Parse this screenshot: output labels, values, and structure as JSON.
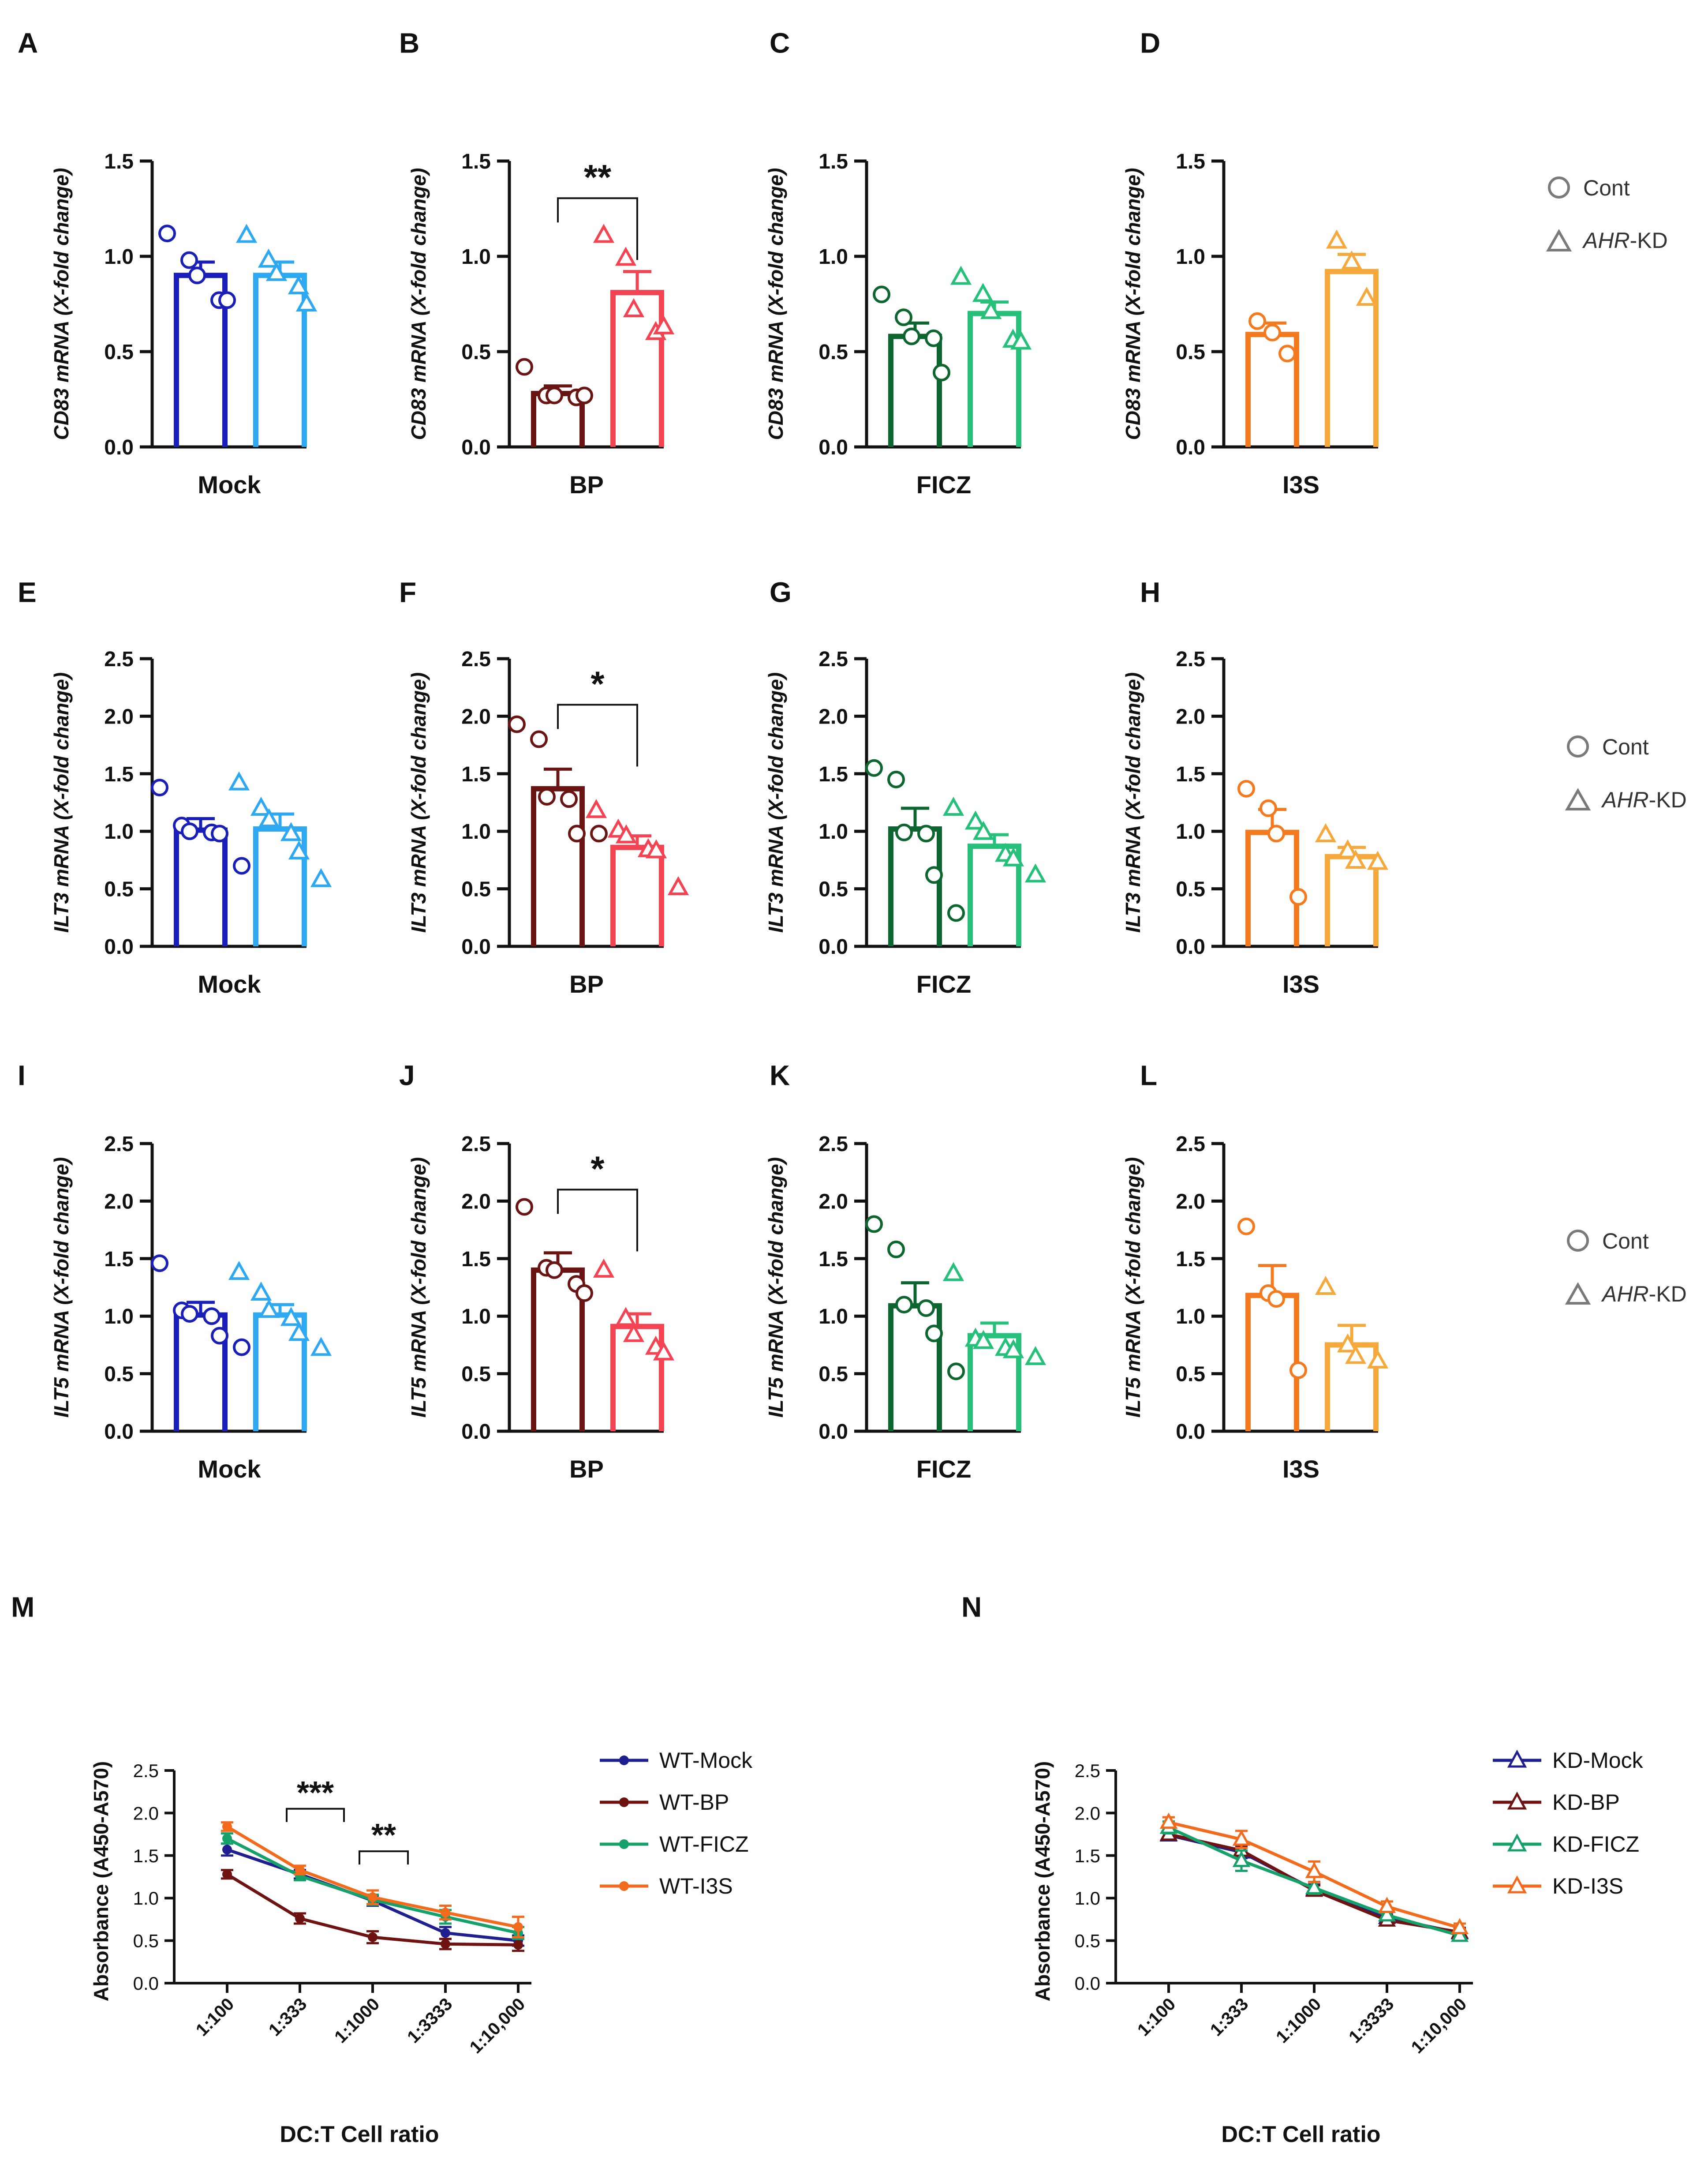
{
  "legend_bar": {
    "cont": "Cont",
    "kd_italic": "AHR",
    "kd_suffix": "-KD"
  },
  "chart_data": [
    {
      "id": "A",
      "type": "bar",
      "title": "",
      "xlabel": "Mock",
      "ylabel_italic": "CD83",
      "ylabel_rest": " mRNA (X-fold change)",
      "ylim": [
        0,
        1.5
      ],
      "yticks": [
        "0.0",
        "0.5",
        "1.0",
        "1.5"
      ],
      "colors": [
        "#1a1fb8",
        "#2ea8f0"
      ],
      "series": [
        {
          "name": "Cont",
          "mean": 0.9,
          "sem": 0.07,
          "points": [
            1.12,
            0.98,
            0.9,
            0.77,
            0.77
          ]
        },
        {
          "name": "AHR-KD",
          "mean": 0.9,
          "sem": 0.07,
          "points": [
            1.11,
            0.98,
            0.91,
            0.84,
            0.75
          ]
        }
      ],
      "sig": ""
    },
    {
      "id": "B",
      "type": "bar",
      "title": "",
      "xlabel": "BP",
      "ylabel_italic": "CD83",
      "ylabel_rest": " mRNA (X-fold change)",
      "ylim": [
        0,
        1.5
      ],
      "yticks": [
        "0.0",
        "0.5",
        "1.0",
        "1.5"
      ],
      "colors": [
        "#6b1414",
        "#f24452"
      ],
      "series": [
        {
          "name": "Cont",
          "mean": 0.28,
          "sem": 0.04,
          "points": [
            0.42,
            0.27,
            0.27,
            0.26,
            0.27
          ]
        },
        {
          "name": "AHR-KD",
          "mean": 0.81,
          "sem": 0.11,
          "points": [
            1.11,
            0.99,
            0.72,
            0.6,
            0.63
          ]
        }
      ],
      "sig": "**"
    },
    {
      "id": "C",
      "type": "bar",
      "title": "",
      "xlabel": "FICZ",
      "ylabel_italic": "CD83",
      "ylabel_rest": " mRNA (X-fold change)",
      "ylim": [
        0,
        1.5
      ],
      "yticks": [
        "0.0",
        "0.5",
        "1.0",
        "1.5"
      ],
      "colors": [
        "#0d6630",
        "#26c07a"
      ],
      "series": [
        {
          "name": "Cont",
          "mean": 0.58,
          "sem": 0.07,
          "points": [
            0.8,
            0.68,
            0.58,
            0.57,
            0.39
          ]
        },
        {
          "name": "AHR-KD",
          "mean": 0.7,
          "sem": 0.06,
          "points": [
            0.89,
            0.8,
            0.71,
            0.56,
            0.55
          ]
        }
      ],
      "sig": ""
    },
    {
      "id": "D",
      "type": "bar",
      "title": "",
      "xlabel": "I3S",
      "ylabel_italic": "CD83",
      "ylabel_rest": " mRNA (X-fold change)",
      "ylim": [
        0,
        1.5
      ],
      "yticks": [
        "0.0",
        "0.5",
        "1.0",
        "1.5"
      ],
      "colors": [
        "#f47a1f",
        "#f5a93c"
      ],
      "series": [
        {
          "name": "Cont",
          "mean": 0.59,
          "sem": 0.06,
          "points": [
            0.66,
            0.6,
            0.49
          ]
        },
        {
          "name": "AHR-KD",
          "mean": 0.92,
          "sem": 0.09,
          "points": [
            1.08,
            0.97,
            0.78
          ]
        }
      ],
      "sig": ""
    },
    {
      "id": "E",
      "type": "bar",
      "title": "",
      "xlabel": "Mock",
      "ylabel_italic": "ILT3",
      "ylabel_rest": " mRNA (X-fold change)",
      "ylim": [
        0,
        2.5
      ],
      "yticks": [
        "0.0",
        "0.5",
        "1.0",
        "1.5",
        "2.0",
        "2.5"
      ],
      "colors": [
        "#1a1fb8",
        "#2ea8f0"
      ],
      "series": [
        {
          "name": "Cont",
          "mean": 1.01,
          "sem": 0.1,
          "points": [
            1.38,
            1.05,
            1.0,
            0.99,
            0.98,
            0.7
          ]
        },
        {
          "name": "AHR-KD",
          "mean": 1.02,
          "sem": 0.13,
          "points": [
            1.42,
            1.2,
            1.1,
            0.98,
            0.82,
            0.58
          ]
        }
      ],
      "sig": ""
    },
    {
      "id": "F",
      "type": "bar",
      "title": "",
      "xlabel": "BP",
      "ylabel_italic": "ILT3",
      "ylabel_rest": " mRNA (X-fold change)",
      "ylim": [
        0,
        2.5
      ],
      "yticks": [
        "0.0",
        "0.5",
        "1.0",
        "1.5",
        "2.0",
        "2.5"
      ],
      "colors": [
        "#6b1414",
        "#f24452"
      ],
      "series": [
        {
          "name": "Cont",
          "mean": 1.37,
          "sem": 0.17,
          "points": [
            1.93,
            1.8,
            1.3,
            1.28,
            0.98,
            0.98
          ]
        },
        {
          "name": "AHR-KD",
          "mean": 0.86,
          "sem": 0.1,
          "points": [
            1.18,
            1.01,
            0.96,
            0.84,
            0.83,
            0.51
          ]
        }
      ],
      "sig": "*"
    },
    {
      "id": "G",
      "type": "bar",
      "title": "",
      "xlabel": "FICZ",
      "ylabel_italic": "ILT3",
      "ylabel_rest": " mRNA (X-fold change)",
      "ylim": [
        0,
        2.5
      ],
      "yticks": [
        "0.0",
        "0.5",
        "1.0",
        "1.5",
        "2.0",
        "2.5"
      ],
      "colors": [
        "#0d6630",
        "#26c07a"
      ],
      "series": [
        {
          "name": "Cont",
          "mean": 1.02,
          "sem": 0.18,
          "points": [
            1.55,
            1.45,
            0.99,
            0.98,
            0.62,
            0.29
          ]
        },
        {
          "name": "AHR-KD",
          "mean": 0.87,
          "sem": 0.1,
          "points": [
            1.2,
            1.08,
            0.99,
            0.8,
            0.76,
            0.62
          ]
        }
      ],
      "sig": ""
    },
    {
      "id": "H",
      "type": "bar",
      "title": "",
      "xlabel": "I3S",
      "ylabel_italic": "ILT3",
      "ylabel_rest": " mRNA (X-fold change)",
      "ylim": [
        0,
        2.5
      ],
      "yticks": [
        "0.0",
        "0.5",
        "1.0",
        "1.5",
        "2.0",
        "2.5"
      ],
      "colors": [
        "#f47a1f",
        "#f5a93c"
      ],
      "series": [
        {
          "name": "Cont",
          "mean": 0.99,
          "sem": 0.2,
          "points": [
            1.37,
            1.2,
            0.98,
            0.43
          ]
        },
        {
          "name": "AHR-KD",
          "mean": 0.78,
          "sem": 0.08,
          "points": [
            0.97,
            0.83,
            0.74,
            0.73
          ]
        }
      ],
      "sig": ""
    },
    {
      "id": "I",
      "type": "bar",
      "title": "",
      "xlabel": "Mock",
      "ylabel_italic": "ILT5",
      "ylabel_rest": " mRNA (X-fold change)",
      "ylim": [
        0,
        2.5
      ],
      "yticks": [
        "0.0",
        "0.5",
        "1.0",
        "1.5",
        "2.0",
        "2.5"
      ],
      "colors": [
        "#1a1fb8",
        "#2ea8f0"
      ],
      "series": [
        {
          "name": "Cont",
          "mean": 1.01,
          "sem": 0.11,
          "points": [
            1.46,
            1.05,
            1.02,
            1.0,
            0.83,
            0.73
          ]
        },
        {
          "name": "AHR-KD",
          "mean": 1.01,
          "sem": 0.09,
          "points": [
            1.38,
            1.2,
            1.05,
            0.98,
            0.85,
            0.72
          ]
        }
      ],
      "sig": ""
    },
    {
      "id": "J",
      "type": "bar",
      "title": "",
      "xlabel": "BP",
      "ylabel_italic": "ILT5",
      "ylabel_rest": " mRNA (X-fold change)",
      "ylim": [
        0,
        2.5
      ],
      "yticks": [
        "0.0",
        "0.5",
        "1.0",
        "1.5",
        "2.0",
        "2.5"
      ],
      "colors": [
        "#6b1414",
        "#f24452"
      ],
      "series": [
        {
          "name": "Cont",
          "mean": 1.4,
          "sem": 0.15,
          "points": [
            1.95,
            1.42,
            1.4,
            1.28,
            1.2
          ]
        },
        {
          "name": "AHR-KD",
          "mean": 0.91,
          "sem": 0.11,
          "points": [
            1.4,
            0.98,
            0.84,
            0.73,
            0.68
          ]
        }
      ],
      "sig": "*"
    },
    {
      "id": "K",
      "type": "bar",
      "title": "",
      "xlabel": "FICZ",
      "ylabel_italic": "ILT5",
      "ylabel_rest": " mRNA (X-fold change)",
      "ylim": [
        0,
        2.5
      ],
      "yticks": [
        "0.0",
        "0.5",
        "1.0",
        "1.5",
        "2.0",
        "2.5"
      ],
      "colors": [
        "#0d6630",
        "#26c07a"
      ],
      "series": [
        {
          "name": "Cont",
          "mean": 1.09,
          "sem": 0.2,
          "points": [
            1.8,
            1.58,
            1.1,
            1.07,
            0.85,
            0.52
          ]
        },
        {
          "name": "AHR-KD",
          "mean": 0.83,
          "sem": 0.11,
          "points": [
            1.37,
            0.8,
            0.78,
            0.72,
            0.7,
            0.64
          ]
        }
      ],
      "sig": ""
    },
    {
      "id": "L",
      "type": "bar",
      "title": "",
      "xlabel": "I3S",
      "ylabel_italic": "ILT5",
      "ylabel_rest": " mRNA (X-fold change)",
      "ylim": [
        0,
        2.5
      ],
      "yticks": [
        "0.0",
        "0.5",
        "1.0",
        "1.5",
        "2.0",
        "2.5"
      ],
      "colors": [
        "#f47a1f",
        "#f5a93c"
      ],
      "series": [
        {
          "name": "Cont",
          "mean": 1.18,
          "sem": 0.26,
          "points": [
            1.78,
            1.2,
            1.15,
            0.53
          ]
        },
        {
          "name": "AHR-KD",
          "mean": 0.75,
          "sem": 0.17,
          "points": [
            1.25,
            0.75,
            0.65,
            0.61
          ]
        }
      ],
      "sig": ""
    },
    {
      "id": "M",
      "type": "line",
      "title": "",
      "xlabel": "DC:T Cell ratio",
      "ylabel": "Absorbance (A450-A570)",
      "ylim": [
        0,
        2.5
      ],
      "yticks": [
        "0.0",
        "0.5",
        "1.0",
        "1.5",
        "2.0",
        "2.5"
      ],
      "categories": [
        "1:100",
        "1:333",
        "1:1000",
        "1:3333",
        "1:10,000"
      ],
      "marker": "circle",
      "series": [
        {
          "name": "WT-Mock",
          "color": "#1f1f8f",
          "values": [
            1.57,
            1.28,
            0.97,
            0.59,
            0.5
          ],
          "sem": [
            0.07,
            0.05,
            0.06,
            0.07,
            0.06
          ]
        },
        {
          "name": "WT-BP",
          "color": "#6e1212",
          "values": [
            1.28,
            0.76,
            0.54,
            0.46,
            0.45
          ],
          "sem": [
            0.05,
            0.06,
            0.07,
            0.06,
            0.07
          ]
        },
        {
          "name": "WT-FICZ",
          "color": "#16a06a",
          "values": [
            1.7,
            1.26,
            0.98,
            0.78,
            0.59
          ],
          "sem": [
            0.06,
            0.05,
            0.06,
            0.08,
            0.07
          ]
        },
        {
          "name": "WT-I3S",
          "color": "#f26a1b",
          "values": [
            1.84,
            1.33,
            1.01,
            0.83,
            0.66
          ],
          "sem": [
            0.05,
            0.05,
            0.08,
            0.08,
            0.12
          ]
        }
      ],
      "annotations": [
        {
          "text": "***",
          "category_span": [
            1,
            1.5
          ],
          "y": 2.05
        },
        {
          "text": "**",
          "category_span": [
            2,
            2.3
          ],
          "y": 1.55
        }
      ]
    },
    {
      "id": "N",
      "type": "line",
      "title": "",
      "xlabel": "DC:T Cell ratio",
      "ylabel": "Absorbance (A450-A570)",
      "ylim": [
        0,
        2.5
      ],
      "yticks": [
        "0.0",
        "0.5",
        "1.0",
        "1.5",
        "2.0",
        "2.5"
      ],
      "categories": [
        "1:100",
        "1:333",
        "1:1000",
        "1:3333",
        "1:10,000"
      ],
      "marker": "triangle",
      "series": [
        {
          "name": "KD-Mock",
          "color": "#1f1f8f",
          "values": [
            1.74,
            1.54,
            1.1,
            0.77,
            0.59
          ],
          "sem": [
            0.06,
            0.07,
            0.06,
            0.06,
            0.05
          ]
        },
        {
          "name": "KD-BP",
          "color": "#6e1212",
          "values": [
            1.75,
            1.56,
            1.09,
            0.74,
            0.6
          ],
          "sem": [
            0.06,
            0.06,
            0.06,
            0.06,
            0.05
          ]
        },
        {
          "name": "KD-FICZ",
          "color": "#16a06a",
          "values": [
            1.83,
            1.44,
            1.12,
            0.8,
            0.56
          ],
          "sem": [
            0.07,
            0.12,
            0.07,
            0.06,
            0.05
          ]
        },
        {
          "name": "KD-I3S",
          "color": "#f26a1b",
          "values": [
            1.89,
            1.69,
            1.31,
            0.9,
            0.65
          ],
          "sem": [
            0.06,
            0.1,
            0.12,
            0.06,
            0.05
          ]
        }
      ],
      "annotations": []
    }
  ]
}
